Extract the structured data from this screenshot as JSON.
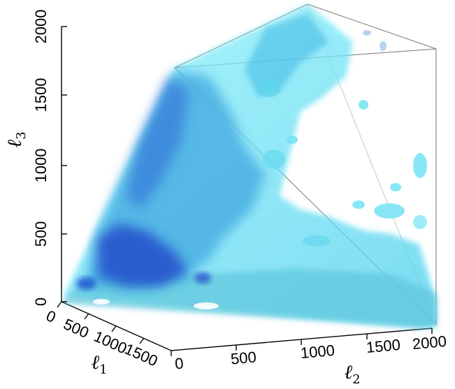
{
  "chart_data": {
    "type": "3d-isosurface",
    "title": "",
    "axes": {
      "l1": {
        "symbol": "ℓ",
        "subscript": "1",
        "ticks": [
          "0",
          "500",
          "1000",
          "1500"
        ],
        "range": [
          0,
          2000
        ]
      },
      "l2": {
        "symbol": "ℓ",
        "subscript": "2",
        "ticks": [
          "0",
          "500",
          "1000",
          "1500",
          "2000"
        ],
        "range": [
          0,
          2000
        ]
      },
      "l3": {
        "symbol": "ℓ",
        "subscript": "3",
        "ticks": [
          "0",
          "500",
          "1000",
          "1500",
          "2000"
        ],
        "range": [
          0,
          2000
        ]
      }
    },
    "domain": "tetrahedral region l1 ≤ l2 ≤ l3",
    "colors": {
      "outer_surface": "#66e6f2",
      "mid_surface": "#3aa6e0",
      "inner_surface": "#1c3fc8",
      "edge_lines": "#555555"
    }
  }
}
